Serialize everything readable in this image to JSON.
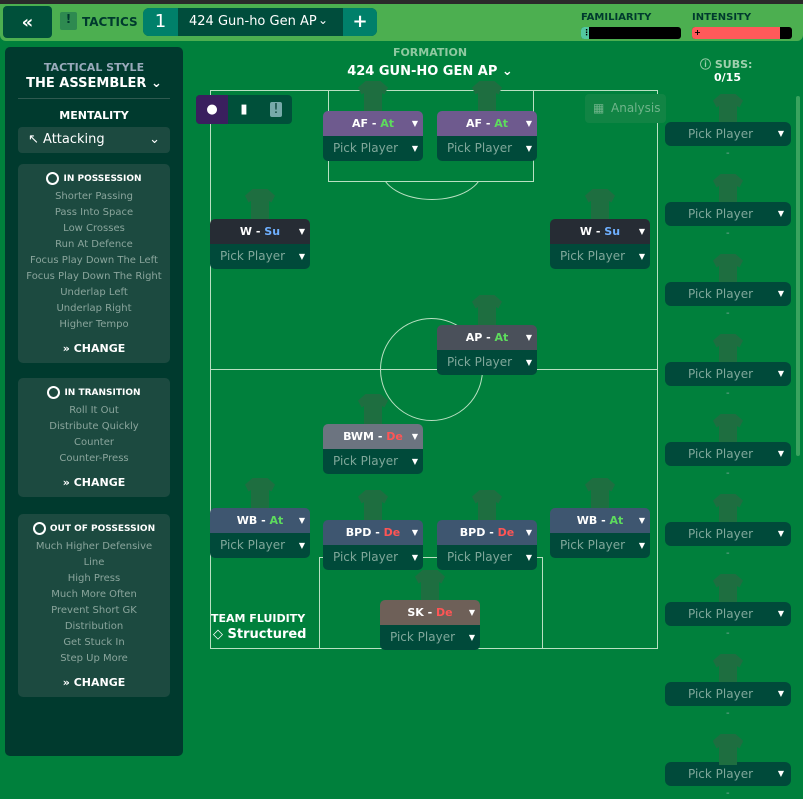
{
  "topbar": {
    "back_icon": "double-chevron-left-icon",
    "back_label": "«",
    "tactics_label": "TACTICS",
    "tactic_slot": "1",
    "tactic_name": "424 Gun-ho Gen AP",
    "add_label": "+",
    "familiarity_label": "FAMILIARITY",
    "familiarity_value": 0.05,
    "intensity_label": "INTENSITY",
    "intensity_value": 0.88,
    "familiarity_color": "#52c9a0",
    "intensity_color": "#ff5a5a"
  },
  "left": {
    "style_label": "TACTICAL STYLE",
    "style_value": "THE ASSEMBLER",
    "mentality_label": "MENTALITY",
    "mentality_value": "Attacking",
    "sections": [
      {
        "title": "IN POSSESSION",
        "icon": "ball-icon",
        "items": [
          "Shorter Passing",
          "Pass Into Space",
          "Low Crosses",
          "Run At Defence",
          "Focus Play Down The Left",
          "Focus Play Down The Right",
          "Underlap Left",
          "Underlap Right",
          "Higher Tempo"
        ],
        "change": "CHANGE"
      },
      {
        "title": "IN TRANSITION",
        "icon": "transition-icon",
        "items": [
          "Roll It Out",
          "Distribute Quickly",
          "Counter",
          "Counter-Press"
        ],
        "change": "CHANGE"
      },
      {
        "title": "OUT OF POSSESSION",
        "icon": "ball-icon",
        "items": [
          "Much Higher Defensive",
          "Line",
          "High Press",
          "Much More Often",
          "Prevent Short GK",
          "Distribution",
          "Get Stuck In",
          "Step Up More"
        ],
        "change": "CHANGE"
      }
    ]
  },
  "formation": {
    "label": "FORMATION",
    "name": "424 GUN-HO GEN AP",
    "analysis": "Analysis",
    "fluidity_label": "TEAM FLUIDITY",
    "fluidity_value": "Structured"
  },
  "duty_colors": {
    "At": "#5ddc5d",
    "Su": "#6fb0ff",
    "De": "#ff5555"
  },
  "players": [
    {
      "role": "AF",
      "duty": "At",
      "pick": "Pick Player",
      "color": "#6e5a8e"
    },
    {
      "role": "AF",
      "duty": "At",
      "pick": "Pick Player",
      "color": "#6e5a8e"
    },
    {
      "role": "W",
      "duty": "Su",
      "pick": "Pick Player",
      "color": "#262c34"
    },
    {
      "role": "W",
      "duty": "Su",
      "pick": "Pick Player",
      "color": "#262c34"
    },
    {
      "role": "AP",
      "duty": "At",
      "pick": "Pick Player",
      "color": "#4a505a"
    },
    {
      "role": "BWM",
      "duty": "De",
      "pick": "Pick Player",
      "color": "#6c7480"
    },
    {
      "role": "WB",
      "duty": "At",
      "pick": "Pick Player",
      "color": "#3e5670"
    },
    {
      "role": "BPD",
      "duty": "De",
      "pick": "Pick Player",
      "color": "#3e5670"
    },
    {
      "role": "BPD",
      "duty": "De",
      "pick": "Pick Player",
      "color": "#3e5670"
    },
    {
      "role": "WB",
      "duty": "At",
      "pick": "Pick Player",
      "color": "#3e5670"
    },
    {
      "role": "SK",
      "duty": "De",
      "pick": "Pick Player",
      "color": "#6e6058"
    }
  ],
  "subs": {
    "label": "SUBS:",
    "count": "0/15",
    "items": [
      "Pick Player",
      "Pick Player",
      "Pick Player",
      "Pick Player",
      "Pick Player",
      "Pick Player",
      "Pick Player",
      "Pick Player",
      "Pick Player"
    ],
    "dash": "-"
  }
}
